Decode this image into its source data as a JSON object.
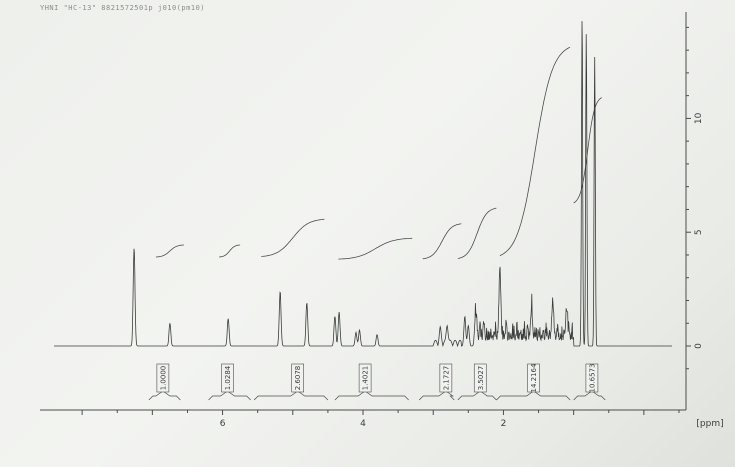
{
  "header": {
    "text": "YHNI \"HC-13\" 8821572501p j010(pm10)"
  },
  "chart_data": {
    "type": "line",
    "title": "",
    "xlabel": "[ppm]",
    "ylabel": "",
    "x_reversed": true,
    "xlim": [
      8.6,
      -0.6
    ],
    "ylim": [
      -1.0,
      14.5
    ],
    "x_ticks": [
      6,
      4,
      2
    ],
    "y_ticks": [
      0,
      5,
      10
    ],
    "grid": false,
    "legend": "none",
    "series": [
      {
        "values": [
          {
            "x": 7.26,
            "y": 4.3
          },
          {
            "x": 6.75,
            "y": 1.0
          },
          {
            "x": 5.92,
            "y": 1.2
          },
          {
            "x": 5.18,
            "y": 2.4
          },
          {
            "x": 4.8,
            "y": 1.9
          },
          {
            "x": 4.4,
            "y": 1.3
          },
          {
            "x": 4.34,
            "y": 1.5
          },
          {
            "x": 4.1,
            "y": 0.6
          },
          {
            "x": 4.05,
            "y": 0.7
          },
          {
            "x": 3.8,
            "y": 0.5
          },
          {
            "x": 2.9,
            "y": 0.6
          },
          {
            "x": 2.8,
            "y": 0.8
          },
          {
            "x": 2.55,
            "y": 1.3
          },
          {
            "x": 2.5,
            "y": 0.9
          },
          {
            "x": 2.4,
            "y": 1.2
          },
          {
            "x": 2.05,
            "y": 3.0
          },
          {
            "x": 1.6,
            "y": 1.2
          },
          {
            "x": 1.3,
            "y": 1.4
          },
          {
            "x": 1.1,
            "y": 1.3
          },
          {
            "x": 0.88,
            "y": 14.5
          },
          {
            "x": 0.82,
            "y": 13.8
          },
          {
            "x": 0.7,
            "y": 12.7
          }
        ]
      }
    ],
    "integrals": [
      {
        "label": "1.0000",
        "center": 6.85
      },
      {
        "label": "1.0284",
        "center": 5.93
      },
      {
        "label": "2.6078",
        "center": 4.93
      },
      {
        "label": "1.4021",
        "center": 3.97
      },
      {
        "label": "2.1727",
        "center": 2.82
      },
      {
        "label": "3.5027",
        "center": 2.33
      },
      {
        "label": "14.2164",
        "center": 1.57
      },
      {
        "label": "10.6573",
        "center": 0.74
      }
    ]
  }
}
